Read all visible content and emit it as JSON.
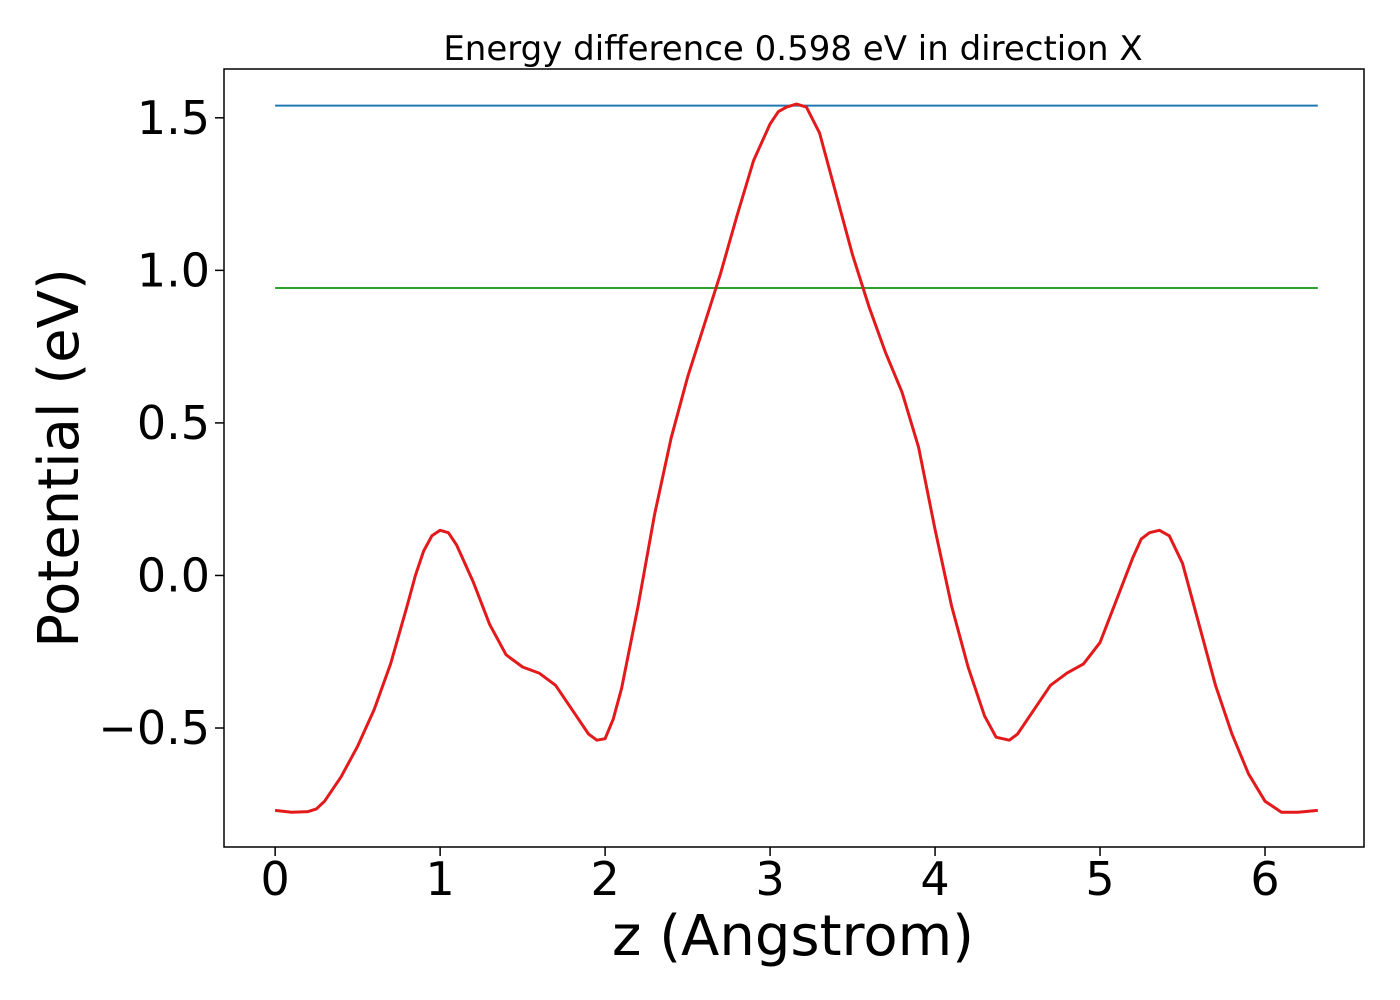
{
  "chart_data": {
    "type": "line",
    "title": "Energy difference 0.598 eV in direction X",
    "xlabel": "z (Angstrom)",
    "ylabel": "Potential (eV)",
    "xlim": [
      -0.31,
      6.6
    ],
    "ylim": [
      -0.89,
      1.66
    ],
    "xticks": [
      0,
      1,
      2,
      3,
      4,
      5,
      6
    ],
    "xtick_labels": [
      "0",
      "1",
      "2",
      "3",
      "4",
      "5",
      "6"
    ],
    "yticks": [
      -0.5,
      0.0,
      0.5,
      1.0,
      1.5
    ],
    "ytick_labels": [
      "−0.5",
      "0.0",
      "0.5",
      "1.0",
      "1.5"
    ],
    "grid": false,
    "legend": "none",
    "hlines": [
      {
        "y": 1.54,
        "x_range": [
          0,
          6.32
        ],
        "color": "#1f77b4"
      },
      {
        "y": 0.942,
        "x_range": [
          0,
          6.32
        ],
        "color": "#2ca02c"
      }
    ],
    "series": [
      {
        "color": "#e31a1c",
        "x": [
          0.0,
          0.1,
          0.2,
          0.25,
          0.3,
          0.4,
          0.5,
          0.6,
          0.7,
          0.8,
          0.85,
          0.9,
          0.95,
          1.0,
          1.05,
          1.1,
          1.2,
          1.3,
          1.4,
          1.5,
          1.6,
          1.7,
          1.8,
          1.9,
          1.95,
          2.0,
          2.05,
          2.1,
          2.2,
          2.3,
          2.4,
          2.5,
          2.6,
          2.7,
          2.8,
          2.9,
          3.0,
          3.05,
          3.1,
          3.16,
          3.22,
          3.3,
          3.4,
          3.5,
          3.6,
          3.7,
          3.8,
          3.9,
          4.0,
          4.1,
          4.2,
          4.3,
          4.37,
          4.45,
          4.5,
          4.6,
          4.7,
          4.8,
          4.9,
          5.0,
          5.1,
          5.2,
          5.25,
          5.3,
          5.36,
          5.42,
          5.5,
          5.6,
          5.7,
          5.8,
          5.9,
          6.0,
          6.1,
          6.2,
          6.32
        ],
        "y": [
          -0.77,
          -0.776,
          -0.774,
          -0.765,
          -0.74,
          -0.66,
          -0.56,
          -0.44,
          -0.29,
          -0.1,
          0.0,
          0.08,
          0.13,
          0.148,
          0.14,
          0.1,
          -0.02,
          -0.16,
          -0.26,
          -0.3,
          -0.32,
          -0.36,
          -0.44,
          -0.52,
          -0.54,
          -0.535,
          -0.47,
          -0.37,
          -0.1,
          0.2,
          0.45,
          0.65,
          0.82,
          0.99,
          1.18,
          1.36,
          1.48,
          1.52,
          1.535,
          1.545,
          1.535,
          1.45,
          1.25,
          1.05,
          0.88,
          0.73,
          0.6,
          0.42,
          0.15,
          -0.1,
          -0.3,
          -0.46,
          -0.53,
          -0.54,
          -0.52,
          -0.44,
          -0.36,
          -0.32,
          -0.29,
          -0.22,
          -0.08,
          0.06,
          0.12,
          0.14,
          0.148,
          0.13,
          0.04,
          -0.16,
          -0.36,
          -0.52,
          -0.65,
          -0.74,
          -0.776,
          -0.776,
          -0.77
        ]
      }
    ]
  }
}
